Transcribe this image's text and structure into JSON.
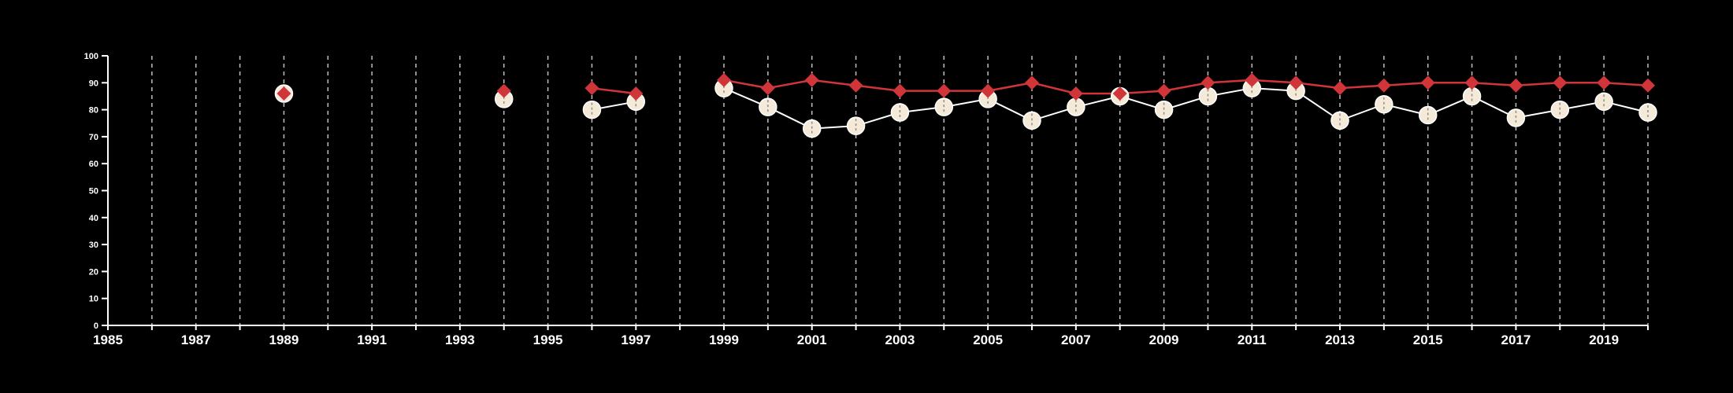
{
  "chart_data": {
    "type": "line",
    "title": "",
    "xlabel": "",
    "ylabel": "",
    "xlim": [
      1985,
      2020
    ],
    "ylim": [
      0,
      100
    ],
    "yticks": [
      "0",
      "10",
      "20",
      "30",
      "40",
      "50",
      "60",
      "70",
      "80",
      "90",
      "100"
    ],
    "xticks": [
      "1985",
      "1987",
      "1989",
      "1991",
      "1993",
      "1995",
      "1997",
      "1999",
      "2001",
      "2003",
      "2005",
      "2007",
      "2009",
      "2011",
      "2013",
      "2015",
      "2017",
      "2019"
    ],
    "grid": "vertical dashed lines at every year",
    "legend": "none",
    "colors": {
      "background": "#000000",
      "axis": "#ffffff",
      "grid": "#bfbfbf",
      "series_a_marker": "#f5ead8",
      "series_a_line": "#ffffff",
      "series_b": "#d0353a"
    },
    "series": [
      {
        "marker": "circle",
        "points": [
          [
            1989,
            86
          ],
          [
            1994,
            84
          ],
          [
            1996,
            80
          ],
          [
            1997,
            83
          ],
          [
            1999,
            88
          ],
          [
            2000,
            81
          ],
          [
            2001,
            73
          ],
          [
            2002,
            74
          ],
          [
            2003,
            79
          ],
          [
            2004,
            81
          ],
          [
            2005,
            84
          ],
          [
            2006,
            76
          ],
          [
            2007,
            81
          ],
          [
            2008,
            85
          ],
          [
            2009,
            80
          ],
          [
            2010,
            85
          ],
          [
            2011,
            88
          ],
          [
            2012,
            87
          ],
          [
            2013,
            76
          ],
          [
            2014,
            82
          ],
          [
            2015,
            78
          ],
          [
            2016,
            85
          ],
          [
            2017,
            77
          ],
          [
            2018,
            80
          ],
          [
            2019,
            83
          ],
          [
            2020,
            79
          ]
        ]
      },
      {
        "marker": "diamond",
        "points": [
          [
            1989,
            86
          ],
          [
            1994,
            87
          ],
          [
            1996,
            88
          ],
          [
            1997,
            86
          ],
          [
            1999,
            91
          ],
          [
            2000,
            88
          ],
          [
            2001,
            91
          ],
          [
            2002,
            89
          ],
          [
            2003,
            87
          ],
          [
            2004,
            87
          ],
          [
            2005,
            87
          ],
          [
            2006,
            90
          ],
          [
            2007,
            86
          ],
          [
            2008,
            86
          ],
          [
            2009,
            87
          ],
          [
            2010,
            90
          ],
          [
            2011,
            91
          ],
          [
            2012,
            90
          ],
          [
            2013,
            88
          ],
          [
            2014,
            89
          ],
          [
            2015,
            90
          ],
          [
            2016,
            90
          ],
          [
            2017,
            89
          ],
          [
            2018,
            90
          ],
          [
            2019,
            90
          ],
          [
            2020,
            89
          ]
        ]
      }
    ]
  }
}
